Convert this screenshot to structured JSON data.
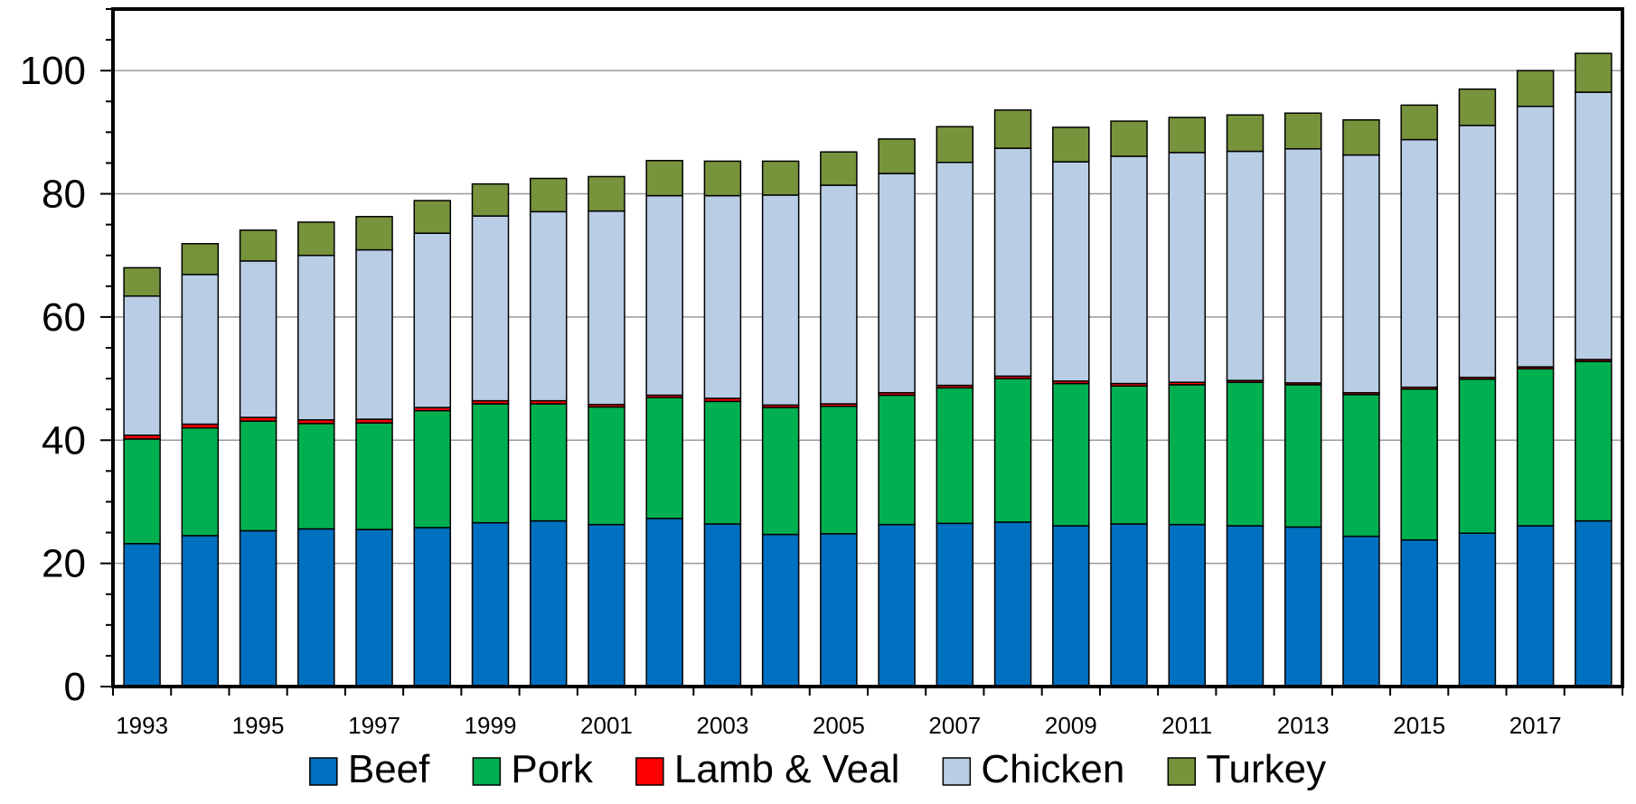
{
  "chart_data": {
    "type": "bar",
    "stacked": true,
    "title": "",
    "xlabel": "",
    "ylabel": "",
    "ylim": [
      0,
      110
    ],
    "yticks": [
      0,
      20,
      40,
      60,
      80,
      100
    ],
    "grid": true,
    "legend_position": "bottom",
    "categories": [
      "1993",
      "1994",
      "1995",
      "1996",
      "1997",
      "1998",
      "1999",
      "2000",
      "2001",
      "2002",
      "2003",
      "2004",
      "2005",
      "2006",
      "2007",
      "2008",
      "2009",
      "2010",
      "2011",
      "2012",
      "2013",
      "2014",
      "2015",
      "2016",
      "2017",
      "2018"
    ],
    "xtick_labels": [
      "1993",
      "1995",
      "1997",
      "1999",
      "2001",
      "2003",
      "2005",
      "2007",
      "2009",
      "2011",
      "2013",
      "2015",
      "2017"
    ],
    "series": [
      {
        "name": "Beef",
        "color": "#0070C0",
        "values": [
          23.2,
          24.5,
          25.3,
          25.6,
          25.5,
          25.8,
          26.6,
          26.9,
          26.3,
          27.3,
          26.4,
          24.7,
          24.8,
          26.3,
          26.5,
          26.7,
          26.1,
          26.4,
          26.3,
          26.1,
          25.9,
          24.4,
          23.8,
          24.9,
          26.1,
          26.9
        ]
      },
      {
        "name": "Pork",
        "color": "#00B050",
        "values": [
          17.0,
          17.5,
          17.8,
          17.1,
          17.3,
          19.0,
          19.3,
          19.0,
          19.1,
          19.6,
          19.9,
          20.6,
          20.7,
          21.0,
          22.0,
          23.3,
          23.1,
          22.4,
          22.7,
          23.3,
          23.1,
          23.0,
          24.5,
          25.0,
          25.5,
          25.9
        ]
      },
      {
        "name": "Lamb & Veal",
        "color": "#FF0000",
        "values": [
          0.6,
          0.6,
          0.6,
          0.6,
          0.6,
          0.5,
          0.5,
          0.5,
          0.4,
          0.4,
          0.5,
          0.4,
          0.4,
          0.4,
          0.4,
          0.4,
          0.4,
          0.4,
          0.4,
          0.3,
          0.3,
          0.3,
          0.3,
          0.3,
          0.3,
          0.3
        ]
      },
      {
        "name": "Chicken",
        "color": "#B9CDE5",
        "values": [
          22.6,
          24.3,
          25.4,
          26.7,
          27.5,
          28.3,
          30.0,
          30.7,
          31.4,
          32.4,
          32.9,
          34.1,
          35.5,
          35.6,
          36.2,
          37.0,
          35.6,
          36.9,
          37.3,
          37.2,
          38.0,
          38.6,
          40.2,
          40.9,
          42.3,
          43.4
        ]
      },
      {
        "name": "Turkey",
        "color": "#77933C",
        "values": [
          4.6,
          5.0,
          5.0,
          5.4,
          5.4,
          5.3,
          5.2,
          5.4,
          5.6,
          5.7,
          5.6,
          5.5,
          5.4,
          5.6,
          5.8,
          6.2,
          5.6,
          5.7,
          5.7,
          5.9,
          5.8,
          5.7,
          5.6,
          5.9,
          5.8,
          6.3
        ]
      }
    ]
  }
}
